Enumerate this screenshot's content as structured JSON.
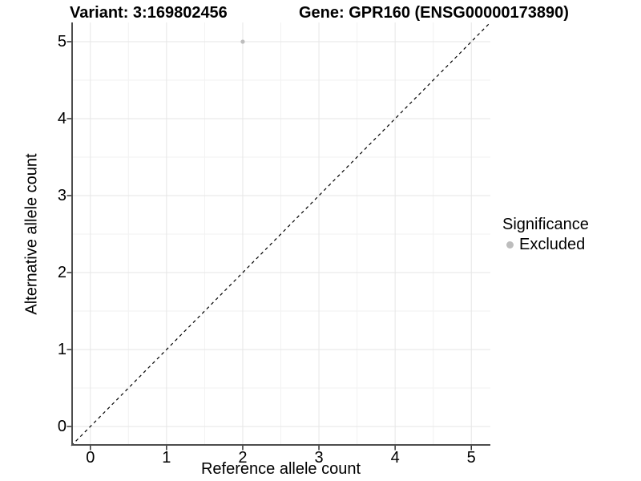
{
  "chart_data": {
    "type": "scatter",
    "title_left": "Variant: 3:169802456",
    "title_right": "Gene: GPR160 (ENSG00000173890)",
    "xlabel": "Reference allele count",
    "ylabel": "Alternative allele count",
    "xlim": [
      -0.25,
      5.25
    ],
    "ylim": [
      -0.25,
      5.25
    ],
    "x_ticks": [
      0,
      1,
      2,
      3,
      4,
      5
    ],
    "y_ticks": [
      0,
      1,
      2,
      3,
      4,
      5
    ],
    "x_minor_ticks": [
      0.5,
      1.5,
      2.5,
      3.5,
      4.5
    ],
    "y_minor_ticks": [
      0.5,
      1.5,
      2.5,
      3.5,
      4.5
    ],
    "grid": "on",
    "points": [
      {
        "x": 2,
        "y": 5,
        "significance": "Excluded"
      }
    ],
    "reference_line": {
      "slope": 1,
      "intercept": 0,
      "style": "dashed"
    },
    "legend": {
      "position": "right",
      "title": "Significance",
      "items": [
        {
          "label": "Excluded",
          "color": "#bdbdbd"
        }
      ]
    },
    "colors": {
      "point": "#bdbdbd",
      "grid_major": "#e6e6e6",
      "grid_minor": "#f2f2f2",
      "axis_line": "#4d4d4d",
      "tick_mark": "#333333",
      "reference_line": "#000000",
      "text": "#000000",
      "background": "#ffffff"
    }
  }
}
